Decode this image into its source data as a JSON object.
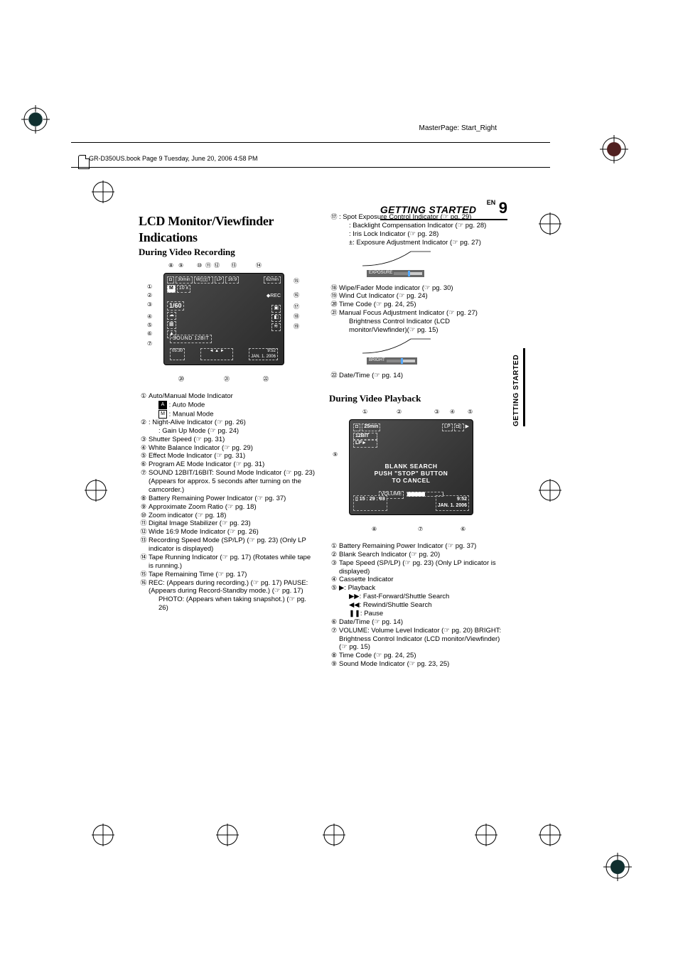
{
  "meta": {
    "masterpage": "MasterPage: Start_Right",
    "book_header": "GR-D350US.book  Page 9  Tuesday, June 20, 2006  4:58 PM"
  },
  "header": {
    "section": "GETTING STARTED",
    "lang": "EN",
    "page": "9"
  },
  "vertical_tab": "GETTING STARTED",
  "left": {
    "title": "LCD Monitor/Viewfinder Indications",
    "subtitle": "During Video Recording",
    "osd": {
      "top_items": [
        "◘",
        "30min",
        "W▯▯▯T",
        "LP",
        "16:9",
        "62min"
      ],
      "line2_mode": "M",
      "line2_zoom": "10 x",
      "shutter": "1/60",
      "sound": "SOUND 12BIT",
      "timecode": "05:30",
      "date": "JAN. 1. 2006",
      "time": "9:52",
      "rec": "REC",
      "right_icons": [
        "◆",
        "◘",
        "▣",
        "◧"
      ]
    },
    "callouts_top": [
      "8",
      "9",
      "10",
      "11",
      "12",
      "13",
      "14"
    ],
    "callouts_left": [
      "1",
      "2",
      "3",
      "4",
      "5",
      "6",
      "7"
    ],
    "callouts_right": [
      "15",
      "16",
      "17",
      "18",
      "19"
    ],
    "callouts_bottom": [
      "20",
      "21",
      "22"
    ],
    "items": [
      {
        "n": "①",
        "text": "Auto/Manual Mode Indicator"
      },
      {
        "n": "",
        "text": "      : Auto Mode",
        "mode": "A",
        "filled": true,
        "indent": true
      },
      {
        "n": "",
        "text": "      : Manual Mode",
        "mode": "M",
        "filled": false,
        "indent": true
      },
      {
        "n": "②",
        "text": "    : Night-Alive Indicator (☞ pg. 26)"
      },
      {
        "n": "",
        "text": "    : Gain Up Mode (☞ pg. 24)",
        "indent": true
      },
      {
        "n": "③",
        "text": "Shutter Speed (☞ pg. 31)"
      },
      {
        "n": "④",
        "text": "White Balance Indicator (☞ pg. 29)"
      },
      {
        "n": "⑤",
        "text": "Effect Mode Indicator (☞ pg. 31)"
      },
      {
        "n": "⑥",
        "text": "Program AE Mode Indicator (☞ pg. 31)"
      },
      {
        "n": "⑦",
        "text": "SOUND 12BIT/16BIT: Sound Mode Indicator (☞ pg. 23) (Appears for approx. 5 seconds after turning on the camcorder.)"
      },
      {
        "n": "⑧",
        "text": "Battery Remaining Power Indicator (☞ pg. 37)"
      },
      {
        "n": "⑨",
        "text": "Approximate Zoom Ratio (☞ pg. 18)"
      },
      {
        "n": "⑩",
        "text": "Zoom indicator (☞ pg. 18)"
      },
      {
        "n": "⑪",
        "text": "Digital Image Stabilizer (☞ pg. 23)"
      },
      {
        "n": "⑫",
        "text": "Wide 16:9 Mode Indicator (☞ pg. 26)"
      },
      {
        "n": "⑬",
        "text": "Recording Speed Mode (SP/LP) (☞ pg. 23) (Only LP indicator is displayed)"
      },
      {
        "n": "⑭",
        "text": "Tape Running Indicator (☞ pg. 17) (Rotates while tape is running.)"
      },
      {
        "n": "⑮",
        "text": "Tape Remaining Time (☞ pg. 17)"
      },
      {
        "n": "⑯",
        "text": "REC: (Appears during recording.) (☞ pg. 17) PAUSE: (Appears during Record-Standby mode.) (☞ pg. 17)"
      },
      {
        "n": "",
        "text": "PHOTO: (Appears when taking snapshot.) (☞ pg. 26)",
        "indent": true
      }
    ]
  },
  "right": {
    "items_top": [
      {
        "n": "⑰",
        "text": "   : Spot Exposure Control Indicator (☞ pg. 29)"
      },
      {
        "n": "",
        "text": "   : Backlight Compensation Indicator (☞ pg. 28)",
        "indent": true
      },
      {
        "n": "",
        "text": "   : Iris Lock Indicator (☞ pg. 28)",
        "indent": true
      },
      {
        "n": "",
        "text": "±: Exposure Adjustment Indicator (☞ pg. 27)",
        "indent": true
      }
    ],
    "gauge1_label": "EXPOSURE",
    "items_mid": [
      {
        "n": "⑱",
        "text": "Wipe/Fader Mode indicator (☞ pg. 30)"
      },
      {
        "n": "⑲",
        "text": "Wind Cut Indicator (☞ pg. 24)"
      },
      {
        "n": "⑳",
        "text": "Time Code (☞ pg. 24, 25)"
      },
      {
        "n": "㉑",
        "text": "Manual Focus Adjustment Indicator (☞ pg. 27)"
      },
      {
        "n": "",
        "text": "Brightness Control Indicator (LCD monitor/Viewfinder)(☞ pg. 15)",
        "indent": true
      }
    ],
    "gauge2_label": "BRIGHT",
    "items_after": [
      {
        "n": "㉒",
        "text": "Date/Time (☞ pg. 14)"
      }
    ],
    "playback_title": "During Video Playback",
    "pb_callouts_top": [
      "1",
      "2",
      "3",
      "4",
      "5"
    ],
    "pb_callouts_side": [
      "9",
      "8",
      "7",
      "6"
    ],
    "pb_osd": {
      "batt": "◘",
      "time_remaining": "25min",
      "lp": "LP",
      "cassette": "◘▯",
      "sound1": "12BIT",
      "sound2": "LP►",
      "blank1": "BLANK   SEARCH",
      "blank2": "PUSH \"STOP\" BUTTON",
      "blank3": "TO   CANCEL",
      "volume_label": "VOLUME",
      "timecode": "15 : 29 : 03",
      "date": "JAN.   1. 2006",
      "datetime": "9:52"
    },
    "pb_items": [
      {
        "n": "①",
        "text": "Battery Remaining Power Indicator (☞ pg. 37)"
      },
      {
        "n": "②",
        "text": "Blank Search Indicator (☞ pg. 20)"
      },
      {
        "n": "③",
        "text": "Tape Speed (SP/LP) (☞ pg. 23) (Only LP indicator is displayed)"
      },
      {
        "n": "④",
        "text": "Cassette Indicator"
      },
      {
        "n": "⑤",
        "text": "▶: Playback"
      },
      {
        "n": "",
        "text": "▶▶: Fast-Forward/Shuttle Search",
        "indent": true
      },
      {
        "n": "",
        "text": "◀◀: Rewind/Shuttle Search",
        "indent": true
      },
      {
        "n": "",
        "text": "❚❚: Pause",
        "indent": true
      },
      {
        "n": "⑥",
        "text": "Date/Time (☞ pg. 14)"
      },
      {
        "n": "⑦",
        "text": "VOLUME: Volume Level Indicator (☞ pg. 20) BRIGHT: Brightness Control Indicator (LCD monitor/Viewfinder) (☞ pg. 15)"
      },
      {
        "n": "⑧",
        "text": "Time Code (☞ pg. 24, 25)"
      },
      {
        "n": "⑨",
        "text": "Sound Mode Indicator (☞ pg. 23, 25)"
      }
    ]
  },
  "colors": {
    "screen_grad_start": "#505050",
    "screen_grad_end": "#2a2a2a",
    "text": "#000000",
    "osd_text": "#ffffff"
  }
}
